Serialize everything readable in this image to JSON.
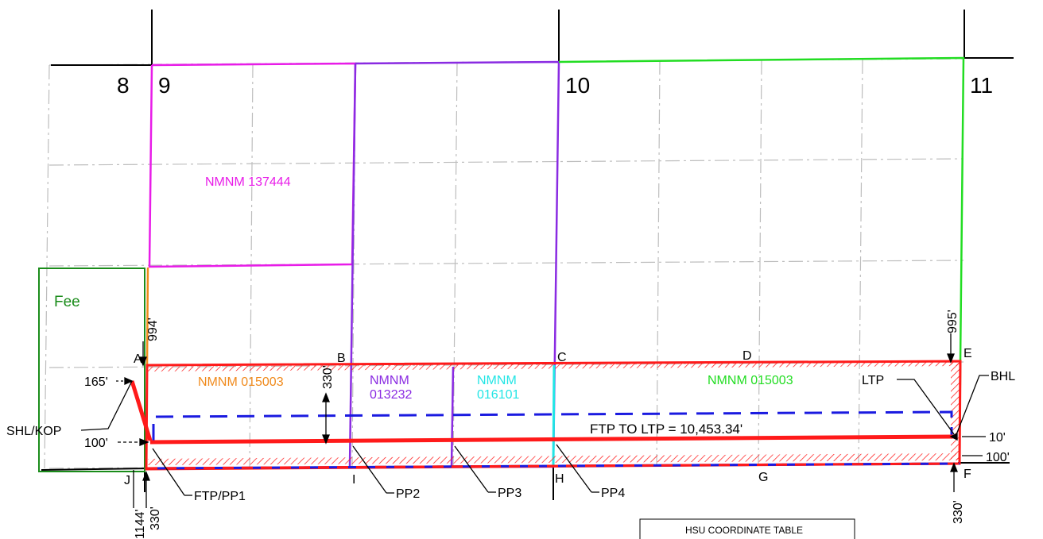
{
  "sections": {
    "s8": "8",
    "s9": "9",
    "s10": "10",
    "s11": "11"
  },
  "leases": {
    "nmnm137444": "NMNM 137444",
    "nmnm015003_west": "NMNM 015003",
    "nmnm013232_a": "NMNM",
    "nmnm013232_b": "013232",
    "nmnm016101_a": "NMNM",
    "nmnm016101_b": "016101",
    "nmnm015003_east": "NMNM 015003"
  },
  "fee": "Fee",
  "points": {
    "A": "A",
    "B": "B",
    "C": "C",
    "D": "D",
    "E": "E",
    "F": "F",
    "G": "G",
    "H": "H",
    "I": "I",
    "J": "J"
  },
  "callouts": {
    "shl_kop": "SHL/KOP",
    "ftp_pp1": "FTP/PP1",
    "pp2": "PP2",
    "pp3": "PP3",
    "pp4": "PP4",
    "ltp": "LTP",
    "bhl": "BHL"
  },
  "dimensions": {
    "d994": "994'",
    "d165": "165'",
    "d100_left": "100'",
    "d1144": "1144'",
    "d330_left": "330'",
    "d330_mid": "330'",
    "d995": "995'",
    "d10": "10'",
    "d100_right": "100'",
    "d330_right": "330'"
  },
  "lateral": "FTP TO LTP = 10,453.34'",
  "table_title": "HSU COORDINATE TABLE",
  "colors": {
    "magenta": "#e81ce8",
    "purple": "#8a2be2",
    "green": "#22dd22",
    "darkgreen": "#1a8c1a",
    "orange": "#f08a1c",
    "cyan": "#22e5e5",
    "red": "#ff1a1a",
    "blue": "#1a1ae0",
    "grid": "#bdbdbd"
  }
}
